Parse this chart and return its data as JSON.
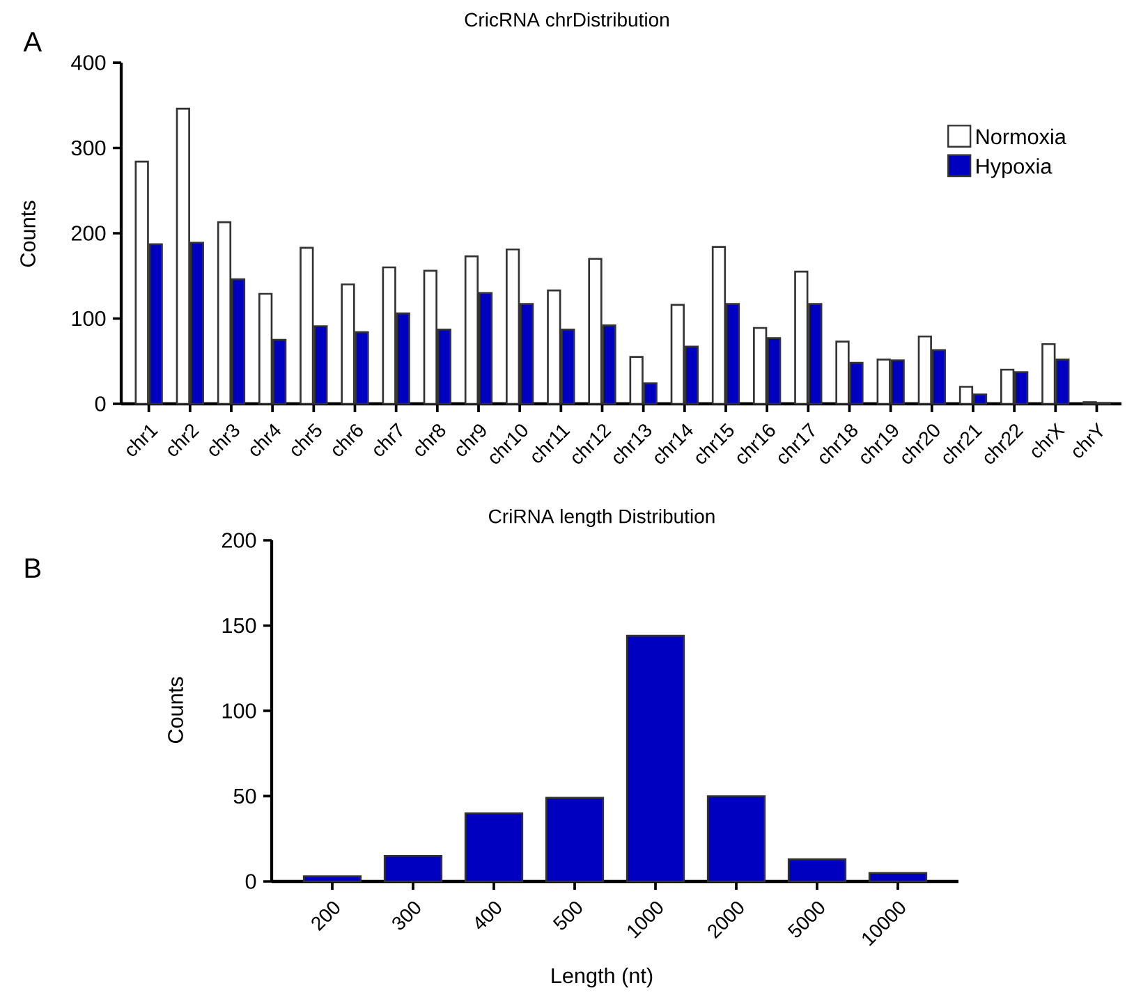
{
  "chart_data": [
    {
      "type": "bar",
      "title": "CricRNA chrDistribution",
      "ylabel": "Counts",
      "annotations": [
        "A"
      ],
      "categories": [
        "chr1",
        "chr2",
        "chr3",
        "chr4",
        "chr5",
        "chr6",
        "chr7",
        "chr8",
        "chr9",
        "chr10",
        "chr11",
        "chr12",
        "chr13",
        "chr14",
        "chr15",
        "chr16",
        "chr17",
        "chr18",
        "chr19",
        "chr20",
        "chr21",
        "chr22",
        "chrX",
        "chrY"
      ],
      "series": [
        {
          "name": "Normoxia",
          "color": "#ffffff",
          "values": [
            284,
            346,
            213,
            129,
            183,
            140,
            160,
            156,
            173,
            181,
            133,
            170,
            55,
            116,
            184,
            89,
            155,
            73,
            52,
            79,
            20,
            40,
            70,
            2
          ]
        },
        {
          "name": "Hypoxia",
          "color": "#0000c0",
          "values": [
            187,
            189,
            146,
            75,
            91,
            84,
            106,
            87,
            130,
            117,
            87,
            92,
            24,
            67,
            117,
            77,
            117,
            48,
            51,
            63,
            11,
            37,
            52,
            1
          ]
        }
      ],
      "ylim": [
        0,
        400
      ],
      "yticks": [
        0,
        100,
        200,
        300,
        400
      ],
      "legend": "top right"
    },
    {
      "type": "bar",
      "title": "CriRNA length Distribution",
      "xlabel": "Length (nt)",
      "ylabel": "Counts",
      "annotations": [
        "B"
      ],
      "categories": [
        "200",
        "300",
        "400",
        "500",
        "1000",
        "2000",
        "5000",
        "10000"
      ],
      "values": [
        3,
        15,
        40,
        49,
        144,
        50,
        13,
        5
      ],
      "color": "#0000c0",
      "ylim": [
        0,
        200
      ],
      "yticks": [
        0,
        50,
        100,
        150,
        200
      ]
    }
  ]
}
